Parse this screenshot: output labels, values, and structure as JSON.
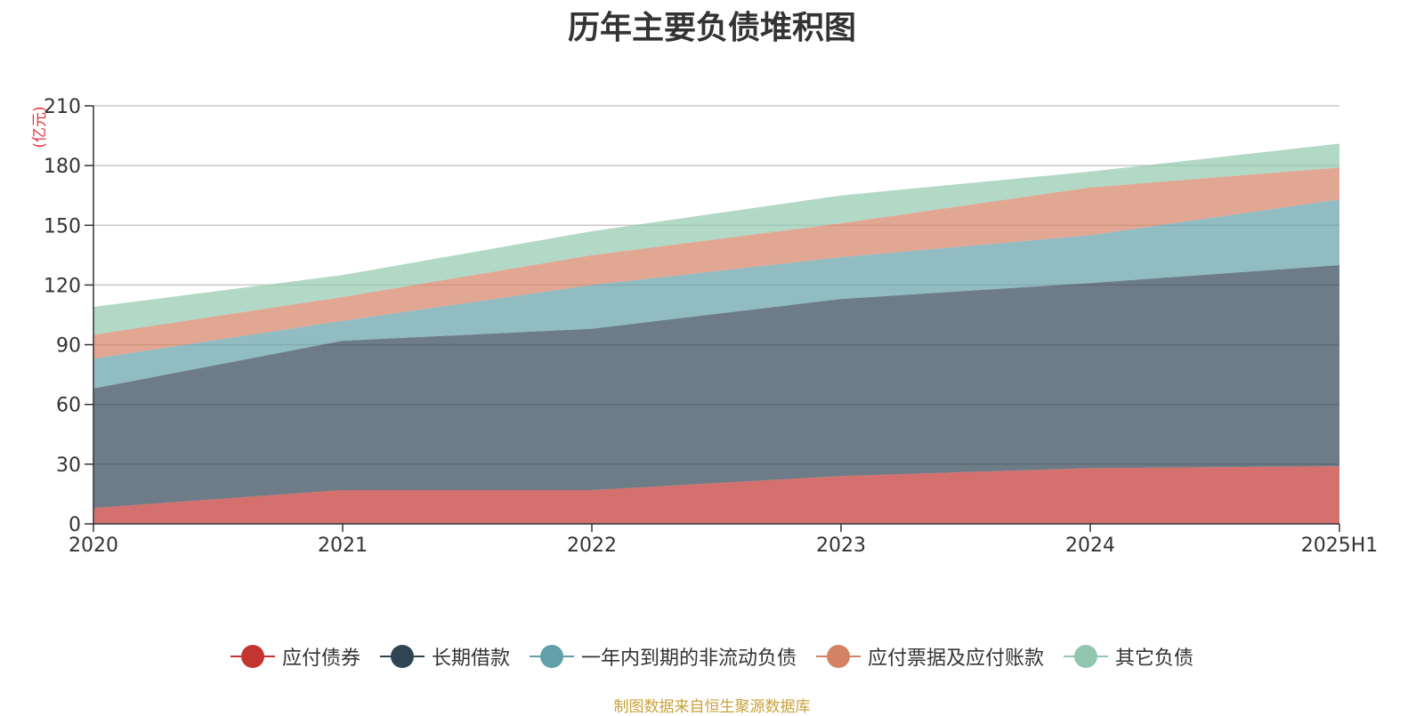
{
  "chart_data": {
    "type": "area",
    "stacked": true,
    "title": "历年主要负债堆积图",
    "ylabel": "(亿元)",
    "categories": [
      "2020",
      "2021",
      "2022",
      "2023",
      "2024",
      "2025H1"
    ],
    "ylim": [
      0,
      210
    ],
    "yticks": [
      "0",
      "30",
      "60",
      "90",
      "120",
      "150",
      "180",
      "210"
    ],
    "grid": true,
    "legend_position": "bottom",
    "series": [
      {
        "name": "应付债券",
        "color": "#c23531",
        "values": [
          8,
          17,
          17,
          24,
          28,
          29
        ]
      },
      {
        "name": "长期借款",
        "color": "#2f4554",
        "values": [
          60,
          75,
          81,
          89,
          93,
          101
        ]
      },
      {
        "name": "一年内到期的非流动负债",
        "color": "#61a0a8",
        "values": [
          15,
          10,
          22,
          21,
          24,
          33
        ]
      },
      {
        "name": "应付票据及应付账款",
        "color": "#d48265",
        "values": [
          12,
          12,
          15,
          17,
          24,
          16
        ]
      },
      {
        "name": "其它负债",
        "color": "#91c7ae",
        "values": [
          14,
          11,
          12,
          14,
          8,
          12
        ]
      }
    ]
  },
  "source": "制图数据来自恒生聚源数据库"
}
